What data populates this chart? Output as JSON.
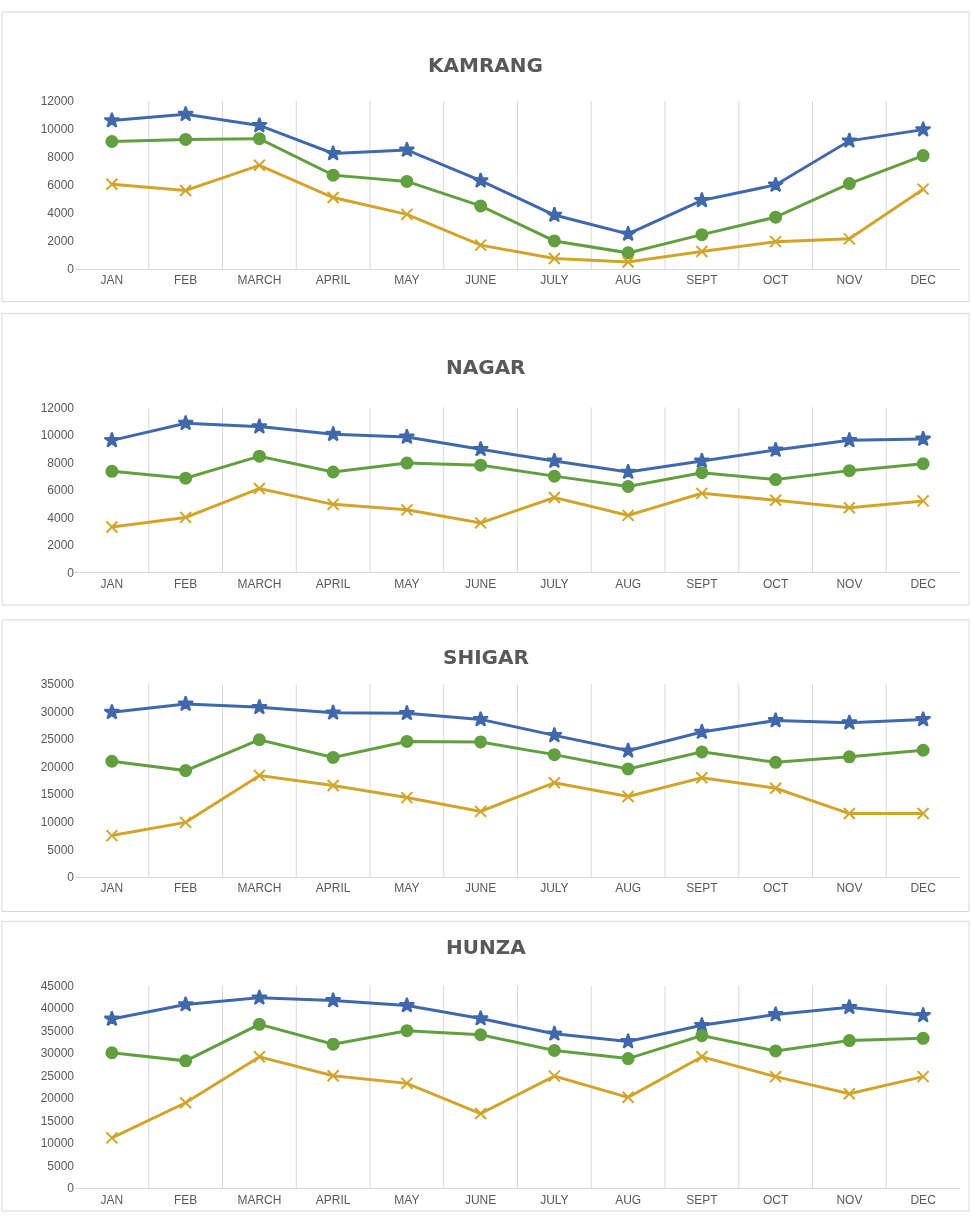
{
  "chart_data": [
    {
      "type": "line",
      "title": "KAMRANG",
      "categories": [
        "JAN",
        "FEB",
        "MARCH",
        "APRIL",
        "MAY",
        "JUNE",
        "JULY",
        "AUG",
        "SEPT",
        "OCT",
        "NOV",
        "DEC"
      ],
      "ylim": [
        0,
        12000
      ],
      "yticks": [
        0,
        2000,
        4000,
        6000,
        8000,
        10000,
        12000
      ],
      "grid": "x",
      "series": [
        {
          "color": "#4068ad",
          "marker": "star",
          "values": [
            10600,
            11050,
            10250,
            8250,
            8500,
            6300,
            3850,
            2500,
            4900,
            6000,
            9150,
            9950
          ]
        },
        {
          "color": "#62a03f",
          "marker": "circle",
          "values": [
            9100,
            9250,
            9300,
            6700,
            6250,
            4500,
            2000,
            1150,
            2450,
            3700,
            6100,
            8100
          ]
        },
        {
          "color": "#d2a52a",
          "marker": "cross",
          "values": [
            6050,
            5600,
            7400,
            5100,
            3900,
            1700,
            750,
            500,
            1250,
            1950,
            2150,
            5700
          ]
        }
      ]
    },
    {
      "type": "line",
      "title": "NAGAR",
      "categories": [
        "JAN",
        "FEB",
        "MARCH",
        "APRIL",
        "MAY",
        "JUNE",
        "JULY",
        "AUG",
        "SEPT",
        "OCT",
        "NOV",
        "DEC"
      ],
      "ylim": [
        0,
        12000
      ],
      "yticks": [
        0,
        2000,
        4000,
        6000,
        8000,
        10000,
        12000
      ],
      "grid": "x",
      "series": [
        {
          "color": "#4068ad",
          "marker": "star",
          "values": [
            9600,
            10850,
            10600,
            10050,
            9850,
            8950,
            8100,
            7300,
            8100,
            8900,
            9600,
            9700
          ]
        },
        {
          "color": "#62a03f",
          "marker": "circle",
          "values": [
            7350,
            6850,
            8450,
            7300,
            7950,
            7800,
            7000,
            6250,
            7250,
            6750,
            7400,
            7900
          ]
        },
        {
          "color": "#d2a52a",
          "marker": "cross",
          "values": [
            3300,
            4000,
            6100,
            4950,
            4550,
            3600,
            5450,
            4150,
            5750,
            5250,
            4700,
            5200
          ]
        }
      ]
    },
    {
      "type": "line",
      "title": "SHIGAR",
      "categories": [
        "JAN",
        "FEB",
        "MARCH",
        "APRIL",
        "MAY",
        "JUNE",
        "JULY",
        "AUG",
        "SEPT",
        "OCT",
        "NOV",
        "DEC"
      ],
      "ylim": [
        0,
        35000
      ],
      "yticks": [
        0,
        5000,
        10000,
        15000,
        20000,
        25000,
        30000,
        35000
      ],
      "grid": "x",
      "series": [
        {
          "color": "#4068ad",
          "marker": "star",
          "values": [
            29900,
            31400,
            30800,
            29800,
            29700,
            28600,
            25700,
            22900,
            26300,
            28400,
            28000,
            28600
          ]
        },
        {
          "color": "#62a03f",
          "marker": "circle",
          "values": [
            21000,
            19300,
            24900,
            21700,
            24600,
            24500,
            22200,
            19600,
            22700,
            20800,
            21800,
            23000
          ]
        },
        {
          "color": "#d2a52a",
          "marker": "cross",
          "values": [
            7500,
            9900,
            18400,
            16600,
            14400,
            11900,
            17100,
            14600,
            18000,
            16100,
            11500,
            11500
          ]
        }
      ]
    },
    {
      "type": "line",
      "title": "HUNZA",
      "categories": [
        "JAN",
        "FEB",
        "MARCH",
        "APRIL",
        "MAY",
        "JUNE",
        "JULY",
        "AUG",
        "SEPT",
        "OCT",
        "NOV",
        "DEC"
      ],
      "ylim": [
        0,
        45000
      ],
      "yticks": [
        0,
        5000,
        10000,
        15000,
        20000,
        25000,
        30000,
        35000,
        40000,
        45000
      ],
      "grid": "x",
      "series": [
        {
          "color": "#4068ad",
          "marker": "star",
          "values": [
            37600,
            40800,
            42300,
            41700,
            40600,
            37700,
            34300,
            32600,
            36200,
            38600,
            40200,
            38400
          ]
        },
        {
          "color": "#62a03f",
          "marker": "circle",
          "values": [
            30100,
            28300,
            36400,
            32000,
            35000,
            34100,
            30600,
            28800,
            33900,
            30500,
            32800,
            33300
          ]
        },
        {
          "color": "#d2a52a",
          "marker": "cross",
          "values": [
            11200,
            19000,
            29200,
            25000,
            23300,
            16600,
            24900,
            20200,
            29200,
            24800,
            21000,
            24800
          ]
        }
      ]
    }
  ]
}
